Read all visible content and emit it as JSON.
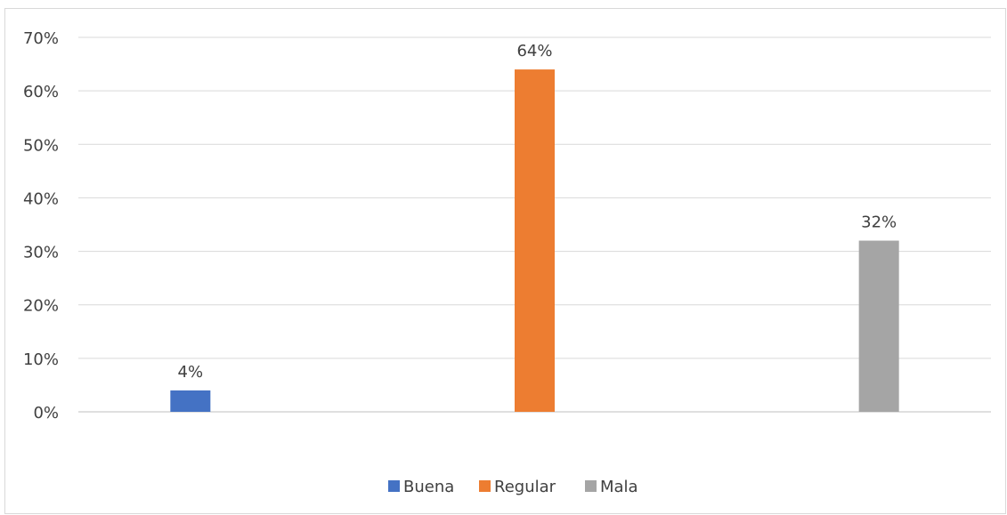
{
  "chart_data": {
    "type": "bar",
    "categories": [
      "",
      "",
      ""
    ],
    "series": [
      {
        "name": "Buena",
        "color": "#4472C4",
        "values": [
          4,
          null,
          null
        ]
      },
      {
        "name": "Regular",
        "color": "#ED7D31",
        "values": [
          null,
          64,
          null
        ]
      },
      {
        "name": "Mala",
        "color": "#A5A5A5",
        "values": [
          null,
          null,
          32
        ]
      }
    ],
    "data_labels": [
      "4%",
      "64%",
      "32%"
    ],
    "y_ticks": [
      "0%",
      "10%",
      "20%",
      "30%",
      "40%",
      "50%",
      "60%",
      "70%"
    ],
    "ylim": [
      0,
      70
    ],
    "grid": true,
    "legend_position": "bottom",
    "title": "",
    "xlabel": "",
    "ylabel": ""
  }
}
